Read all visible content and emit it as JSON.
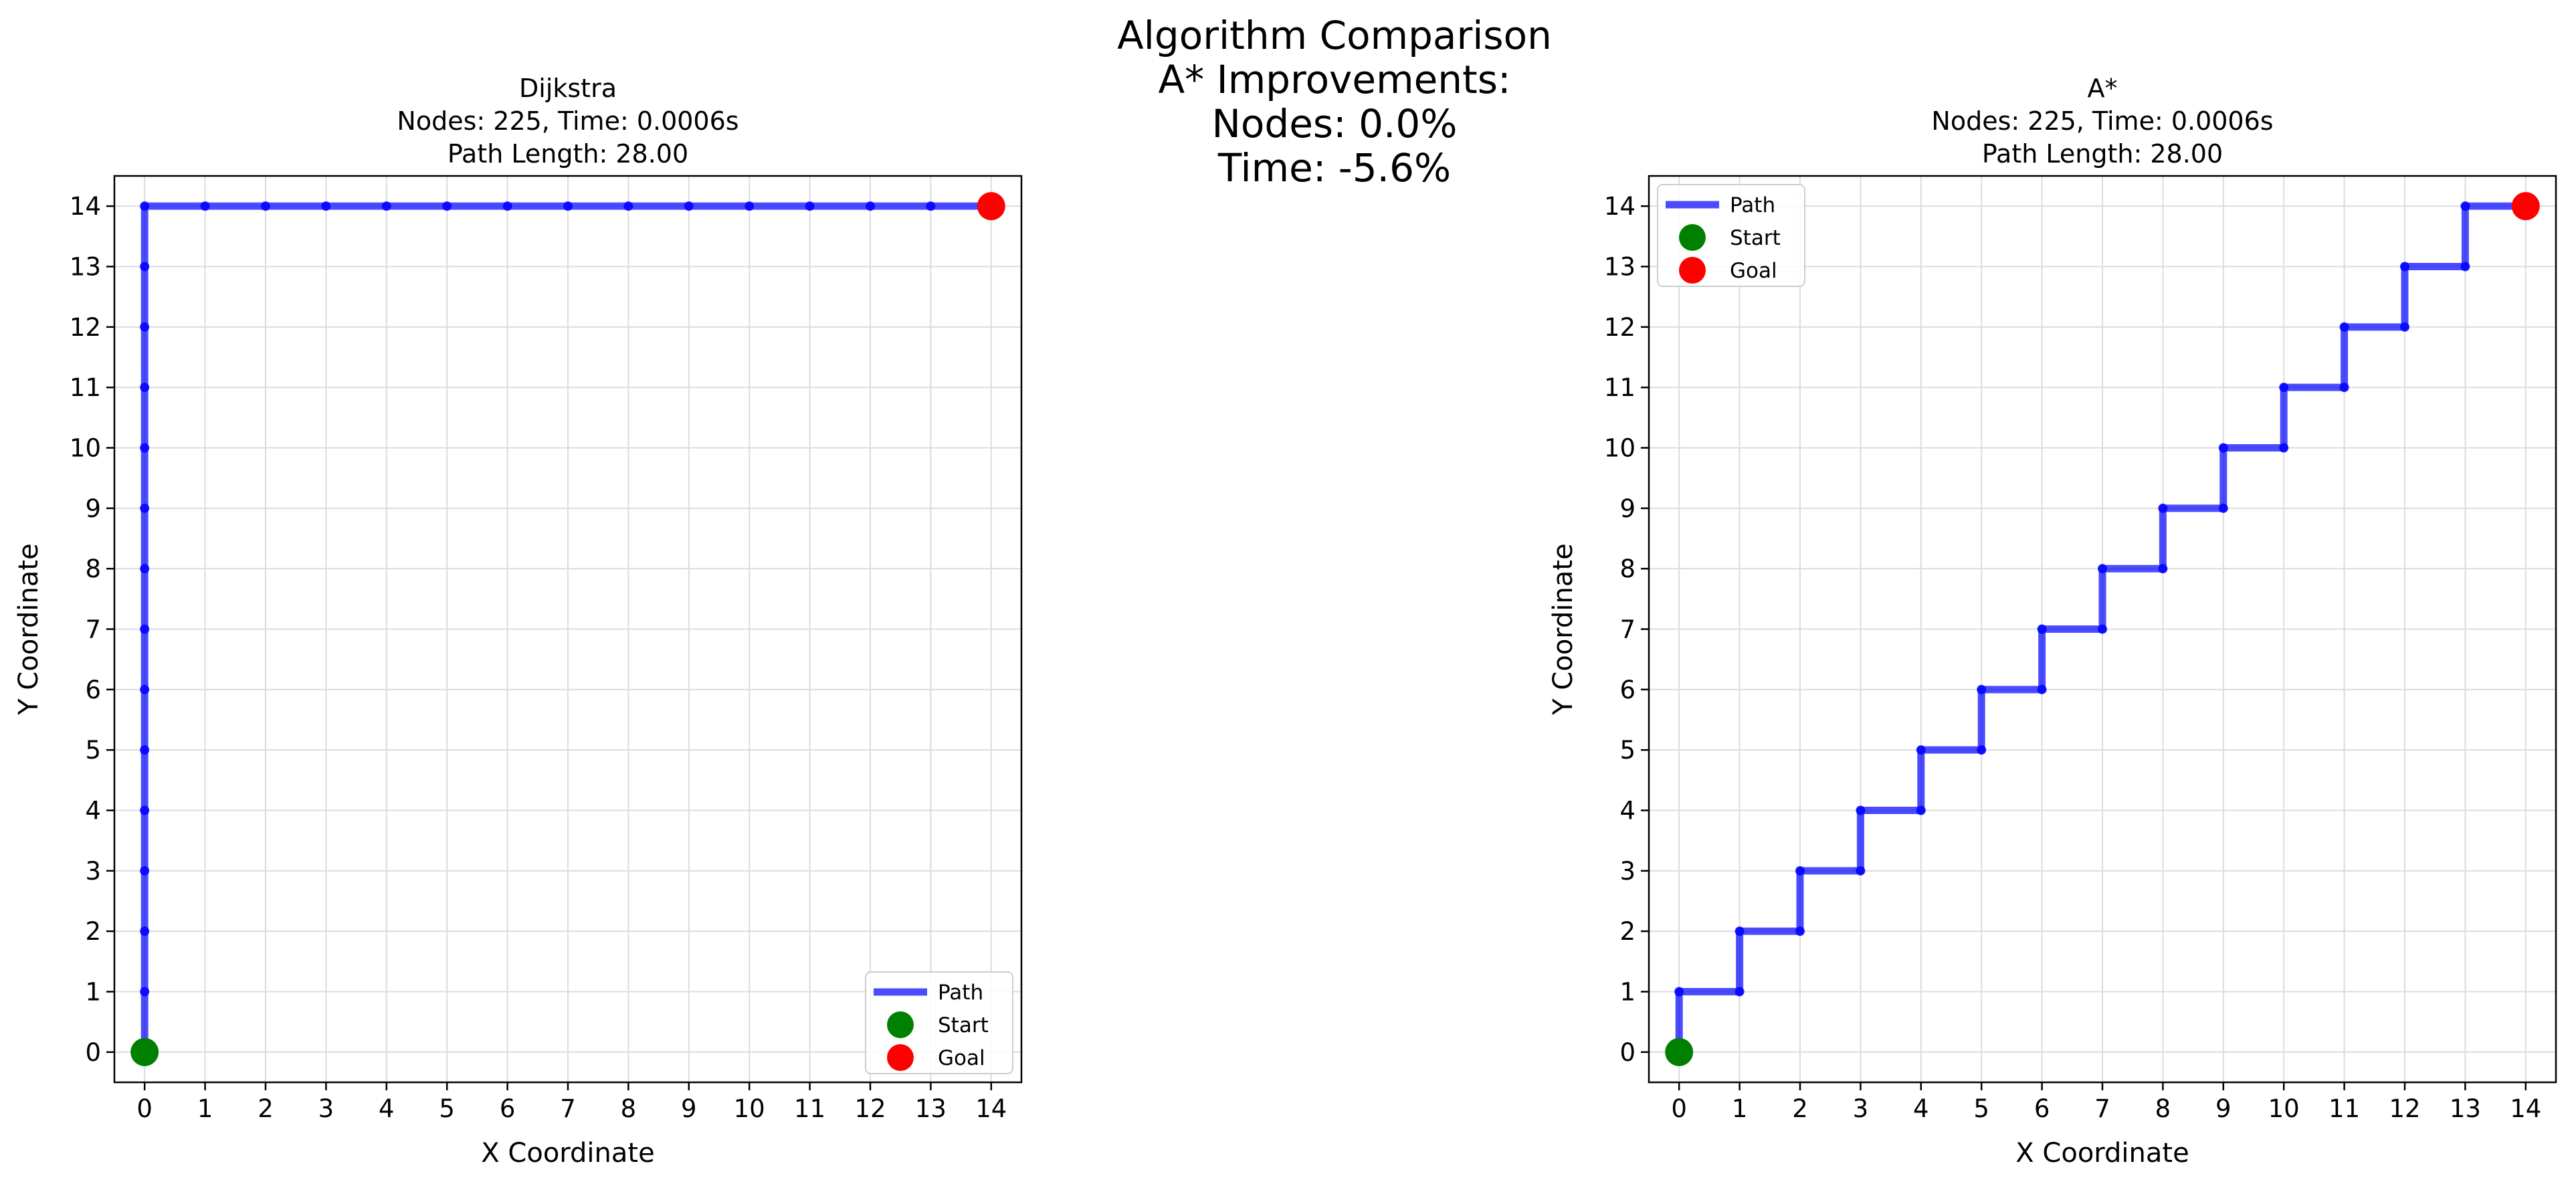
{
  "figure": {
    "suptitle_lines": [
      "Algorithm Comparison",
      "A* Improvements:",
      "Nodes: 0.0%",
      "Time: -5.6%"
    ]
  },
  "colors": {
    "path": "#0000ff",
    "start": "#008000",
    "goal": "#ff0000",
    "grid": "#dcdcdc",
    "axes": "#000000"
  },
  "chart_data": [
    {
      "type": "line",
      "title_lines": [
        "Dijkstra",
        "Nodes: 225, Time: 0.0006s",
        "Path Length: 28.00"
      ],
      "xlabel": "X Coordinate",
      "ylabel": "Y Coordinate",
      "xlim": [
        -0.5,
        14.5
      ],
      "ylim": [
        -0.5,
        14.5
      ],
      "xticks": [
        0,
        1,
        2,
        3,
        4,
        5,
        6,
        7,
        8,
        9,
        10,
        11,
        12,
        13,
        14
      ],
      "yticks": [
        0,
        1,
        2,
        3,
        4,
        5,
        6,
        7,
        8,
        9,
        10,
        11,
        12,
        13,
        14
      ],
      "grid": true,
      "legend_position": "lower-right",
      "series": [
        {
          "name": "Path",
          "x": [
            0,
            0,
            0,
            0,
            0,
            0,
            0,
            0,
            0,
            0,
            0,
            0,
            0,
            0,
            0,
            1,
            2,
            3,
            4,
            5,
            6,
            7,
            8,
            9,
            10,
            11,
            12,
            13,
            14
          ],
          "y": [
            0,
            1,
            2,
            3,
            4,
            5,
            6,
            7,
            8,
            9,
            10,
            11,
            12,
            13,
            14,
            14,
            14,
            14,
            14,
            14,
            14,
            14,
            14,
            14,
            14,
            14,
            14,
            14,
            14
          ]
        },
        {
          "name": "Start",
          "x": [
            0
          ],
          "y": [
            0
          ]
        },
        {
          "name": "Goal",
          "x": [
            14
          ],
          "y": [
            14
          ]
        }
      ]
    },
    {
      "type": "line",
      "title_lines": [
        "A*",
        "Nodes: 225, Time: 0.0006s",
        "Path Length: 28.00"
      ],
      "xlabel": "X Coordinate",
      "ylabel": "Y Coordinate",
      "xlim": [
        -0.5,
        14.5
      ],
      "ylim": [
        -0.5,
        14.5
      ],
      "xticks": [
        0,
        1,
        2,
        3,
        4,
        5,
        6,
        7,
        8,
        9,
        10,
        11,
        12,
        13,
        14
      ],
      "yticks": [
        0,
        1,
        2,
        3,
        4,
        5,
        6,
        7,
        8,
        9,
        10,
        11,
        12,
        13,
        14
      ],
      "grid": true,
      "legend_position": "upper-left",
      "series": [
        {
          "name": "Path",
          "x": [
            0,
            0,
            1,
            1,
            2,
            2,
            3,
            3,
            4,
            4,
            5,
            5,
            6,
            6,
            7,
            7,
            8,
            8,
            9,
            9,
            10,
            10,
            11,
            11,
            12,
            12,
            13,
            13,
            14
          ],
          "y": [
            0,
            1,
            1,
            2,
            2,
            3,
            3,
            4,
            4,
            5,
            5,
            6,
            6,
            7,
            7,
            8,
            8,
            9,
            9,
            10,
            10,
            11,
            11,
            12,
            12,
            13,
            13,
            14,
            14
          ]
        },
        {
          "name": "Start",
          "x": [
            0
          ],
          "y": [
            0
          ]
        },
        {
          "name": "Goal",
          "x": [
            14
          ],
          "y": [
            14
          ]
        }
      ]
    }
  ]
}
